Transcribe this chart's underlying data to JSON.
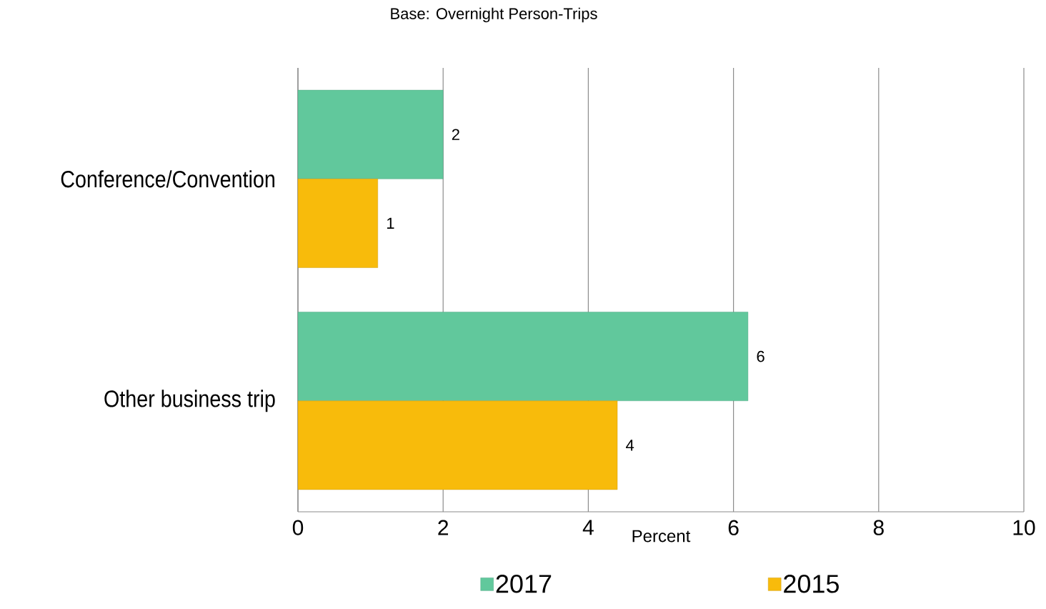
{
  "chart_data": {
    "type": "bar",
    "orientation": "horizontal",
    "title": "Base: Overnight Person-Trips",
    "xlabel": "Percent",
    "categories": [
      "Conference/Convention",
      "Other business trip"
    ],
    "series": [
      {
        "name": "2017",
        "color": "#61c89c",
        "values": [
          2.0,
          6.2
        ],
        "value_labels": [
          "2",
          "6"
        ]
      },
      {
        "name": "2015",
        "color": "#f8bb0b",
        "values": [
          1.1,
          4.4
        ],
        "value_labels": [
          "1",
          "4"
        ]
      }
    ],
    "xlim": [
      0,
      10
    ],
    "xticks": [
      0,
      2,
      4,
      6,
      8,
      10
    ],
    "grid": "x",
    "legend": "bottom"
  }
}
